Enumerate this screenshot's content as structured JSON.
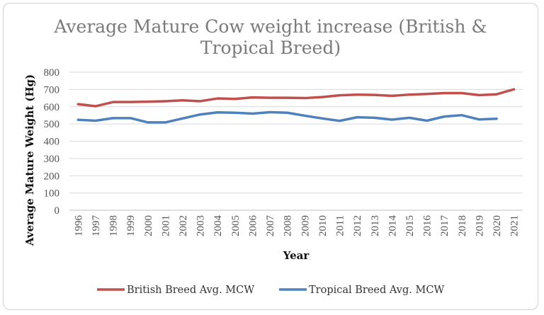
{
  "chart_data": {
    "type": "line",
    "title_lines": [
      "Average Mature Cow weight increase (British &",
      "Tropical Breed)"
    ],
    "xlabel": "Year",
    "ylabel": "Average Mature Weight (Hg)",
    "ylim": [
      0,
      800
    ],
    "yticks": [
      0,
      100,
      200,
      300,
      400,
      500,
      600,
      700,
      800
    ],
    "grid": true,
    "legend_position": "bottom",
    "categories": [
      "1996",
      "1997",
      "1998",
      "1999",
      "2000",
      "2001",
      "2002",
      "2003",
      "2004",
      "2005",
      "2006",
      "2007",
      "2008",
      "2009",
      "2010",
      "2011",
      "2012",
      "2013",
      "2014",
      "2015",
      "2016",
      "2017",
      "2018",
      "2019",
      "2020",
      "2021"
    ],
    "series": [
      {
        "name": "British Breed Avg. MCW",
        "color": "#c0504d",
        "values": [
          615,
          603,
          627,
          627,
          629,
          632,
          637,
          632,
          648,
          645,
          654,
          652,
          652,
          650,
          656,
          666,
          670,
          668,
          663,
          670,
          674,
          679,
          679,
          667,
          672,
          701
        ]
      },
      {
        "name": "Tropical Breed Avg. MCW",
        "color": "#4f81bd",
        "values": [
          524,
          519,
          534,
          534,
          509,
          509,
          532,
          555,
          567,
          565,
          560,
          568,
          565,
          548,
          532,
          518,
          539,
          536,
          525,
          536,
          519,
          543,
          551,
          526,
          530,
          null
        ]
      }
    ]
  }
}
